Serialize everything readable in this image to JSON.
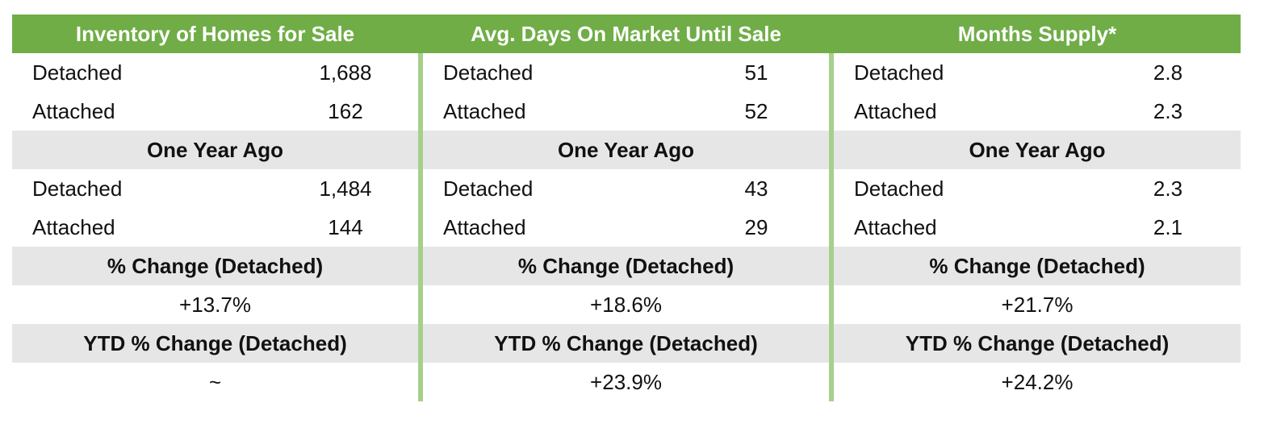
{
  "columns": [
    {
      "title": "Inventory of Homes for Sale",
      "current": [
        {
          "label": "Detached",
          "value": "1,688"
        },
        {
          "label": "Attached",
          "value": "162"
        }
      ],
      "year_ago_label": "One Year Ago",
      "year_ago": [
        {
          "label": "Detached",
          "value": "1,484"
        },
        {
          "label": "Attached",
          "value": "144"
        }
      ],
      "change_label": "% Change (Detached)",
      "change_value": "+13.7%",
      "ytd_label": "YTD % Change (Detached)",
      "ytd_value": "~"
    },
    {
      "title": "Avg. Days On Market Until Sale",
      "current": [
        {
          "label": "Detached",
          "value": "51"
        },
        {
          "label": "Attached",
          "value": "52"
        }
      ],
      "year_ago_label": "One Year Ago",
      "year_ago": [
        {
          "label": "Detached",
          "value": "43"
        },
        {
          "label": "Attached",
          "value": "29"
        }
      ],
      "change_label": "% Change (Detached)",
      "change_value": "+18.6%",
      "ytd_label": "YTD % Change (Detached)",
      "ytd_value": "+23.9%"
    },
    {
      "title": "Months Supply*",
      "current": [
        {
          "label": "Detached",
          "value": "2.8"
        },
        {
          "label": "Attached",
          "value": "2.3"
        }
      ],
      "year_ago_label": "One Year Ago",
      "year_ago": [
        {
          "label": "Detached",
          "value": "2.3"
        },
        {
          "label": "Attached",
          "value": "2.1"
        }
      ],
      "change_label": "% Change (Detached)",
      "change_value": "+21.7%",
      "ytd_label": "YTD % Change (Detached)",
      "ytd_value": "+24.2%"
    }
  ],
  "colors": {
    "header_green": "#70ad47",
    "divider_green": "#a6d08b",
    "subheader_gray": "#e7e6e6"
  }
}
